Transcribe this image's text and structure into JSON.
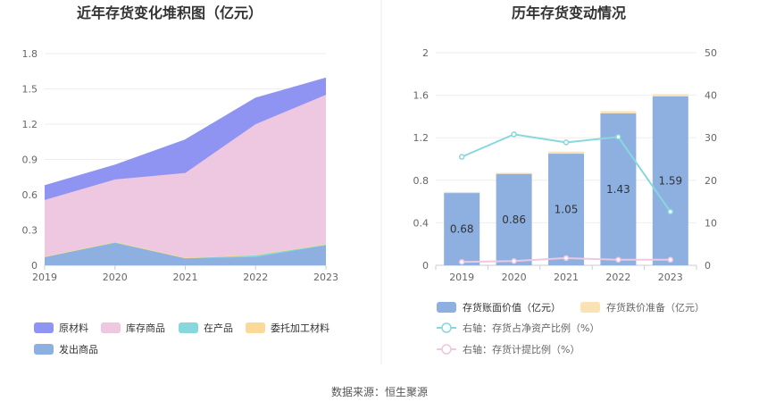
{
  "source": "数据来源：恒生聚源",
  "chart_data": [
    {
      "type": "area",
      "stacked": true,
      "title": "近年存货变化堆积图（亿元）",
      "categories": [
        "2019",
        "2020",
        "2021",
        "2022",
        "2023"
      ],
      "ylim": [
        0,
        1.8
      ],
      "yticks": [
        "0",
        "0.3",
        "0.6",
        "0.9",
        "1.2",
        "1.5",
        "1.8"
      ],
      "grid": true,
      "legend_position": "bottom",
      "series": [
        {
          "name": "发出商品",
          "color": "#8eb0e0",
          "values": [
            0.07,
            0.19,
            0.06,
            0.07,
            0.17
          ]
        },
        {
          "name": "在产品",
          "color": "#86d8dc",
          "values": [
            0.005,
            0.01,
            0.005,
            0.02,
            0.01
          ]
        },
        {
          "name": "委托加工材料",
          "color": "#fbd996",
          "values": [
            0,
            0,
            0,
            0,
            0
          ]
        },
        {
          "name": "库存商品",
          "color": "#eec7e1",
          "values": [
            0.48,
            0.53,
            0.72,
            1.11,
            1.27
          ]
        },
        {
          "name": "原材料",
          "color": "#8f93f2",
          "values": [
            0.12,
            0.12,
            0.28,
            0.22,
            0.14
          ]
        }
      ],
      "legend_order": [
        "原材料",
        "库存商品",
        "在产品",
        "委托加工材料",
        "发出商品"
      ]
    },
    {
      "type": "bar",
      "title": "历年存货变动情况",
      "categories": [
        "2019",
        "2020",
        "2021",
        "2022",
        "2023"
      ],
      "ylim": [
        0,
        2
      ],
      "yticks": [
        "0",
        "0.4",
        "0.8",
        "1.2",
        "1.6",
        "2"
      ],
      "y2lim": [
        0,
        50
      ],
      "y2ticks": [
        "0",
        "10",
        "20",
        "30",
        "40",
        "50"
      ],
      "grid": true,
      "legend_position": "bottom",
      "series": [
        {
          "name": "存货账面价值（亿元）",
          "kind": "bar",
          "color": "#8eb0e0",
          "values": [
            0.68,
            0.86,
            1.05,
            1.43,
            1.59
          ],
          "labels": [
            "0.68",
            "0.86",
            "1.05",
            "1.43",
            "1.59"
          ]
        },
        {
          "name": "存货跌价准备（亿元）",
          "kind": "bar",
          "color": "#fbe2b4",
          "values": [
            0.01,
            0.01,
            0.02,
            0.02,
            0.02
          ]
        },
        {
          "name": "右轴：存货占净资产比例（%）",
          "kind": "line",
          "axis": "right",
          "color": "#86d8dc",
          "values": [
            25.5,
            30.8,
            28.9,
            30.2,
            12.6
          ]
        },
        {
          "name": "右轴：存货计提比例（%）",
          "kind": "line",
          "axis": "right",
          "color": "#eec7e1",
          "values": [
            0.8,
            1.0,
            1.7,
            1.3,
            1.3
          ]
        }
      ]
    }
  ]
}
